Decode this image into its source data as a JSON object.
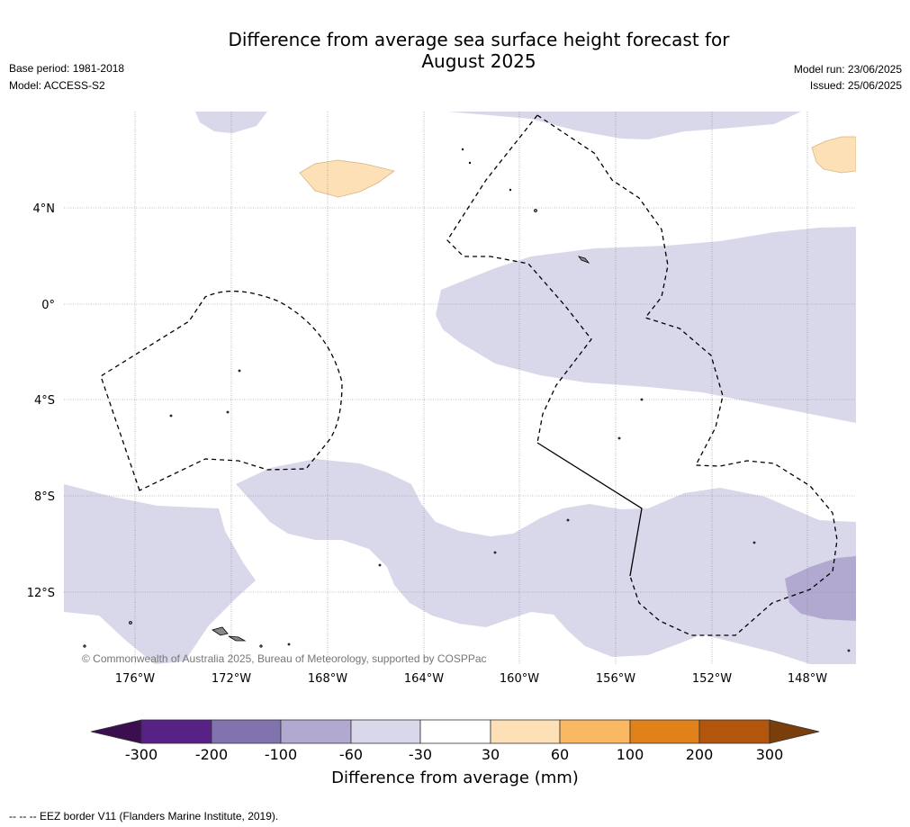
{
  "header": {
    "title_line1": "Difference from average sea surface height forecast for",
    "title_line2": "August 2025",
    "base_period": "Base period: 1981-2018",
    "model": "Model: ACCESS-S2",
    "model_run": "Model run: 23/06/2025",
    "issued": "Issued: 25/06/2025"
  },
  "map": {
    "copyright": "© Commonwealth of Australia 2025, Bureau of Meteorology, supported by COSPPac",
    "lat_labels": [
      "4°N",
      "0°",
      "4°S",
      "8°S",
      "12°S"
    ],
    "lon_labels": [
      "176°W",
      "172°W",
      "168°W",
      "164°W",
      "160°W",
      "156°W",
      "152°W",
      "148°W"
    ],
    "colors": {
      "neg_30_60": "#d8d8ea",
      "neg_60_100": "#b1a9d0",
      "pos_30_60": "#fde0b6",
      "land": "#888888",
      "eez": "#000000"
    }
  },
  "colorbar": {
    "labels": [
      "-300",
      "-200",
      "-100",
      "-60",
      "-30",
      "30",
      "60",
      "100",
      "200",
      "300"
    ],
    "colors": [
      "#3b0f4f",
      "#572185",
      "#8173ad",
      "#b1a9d0",
      "#d8d8ea",
      "#ffffff",
      "#fde0b6",
      "#fab863",
      "#e08119",
      "#b1560c",
      "#7a3e0a"
    ],
    "title": "Difference from average (mm)"
  },
  "footer": {
    "eez_note": "--  --  -- EEZ border V11 (Flanders Marine Institute, 2019)."
  }
}
